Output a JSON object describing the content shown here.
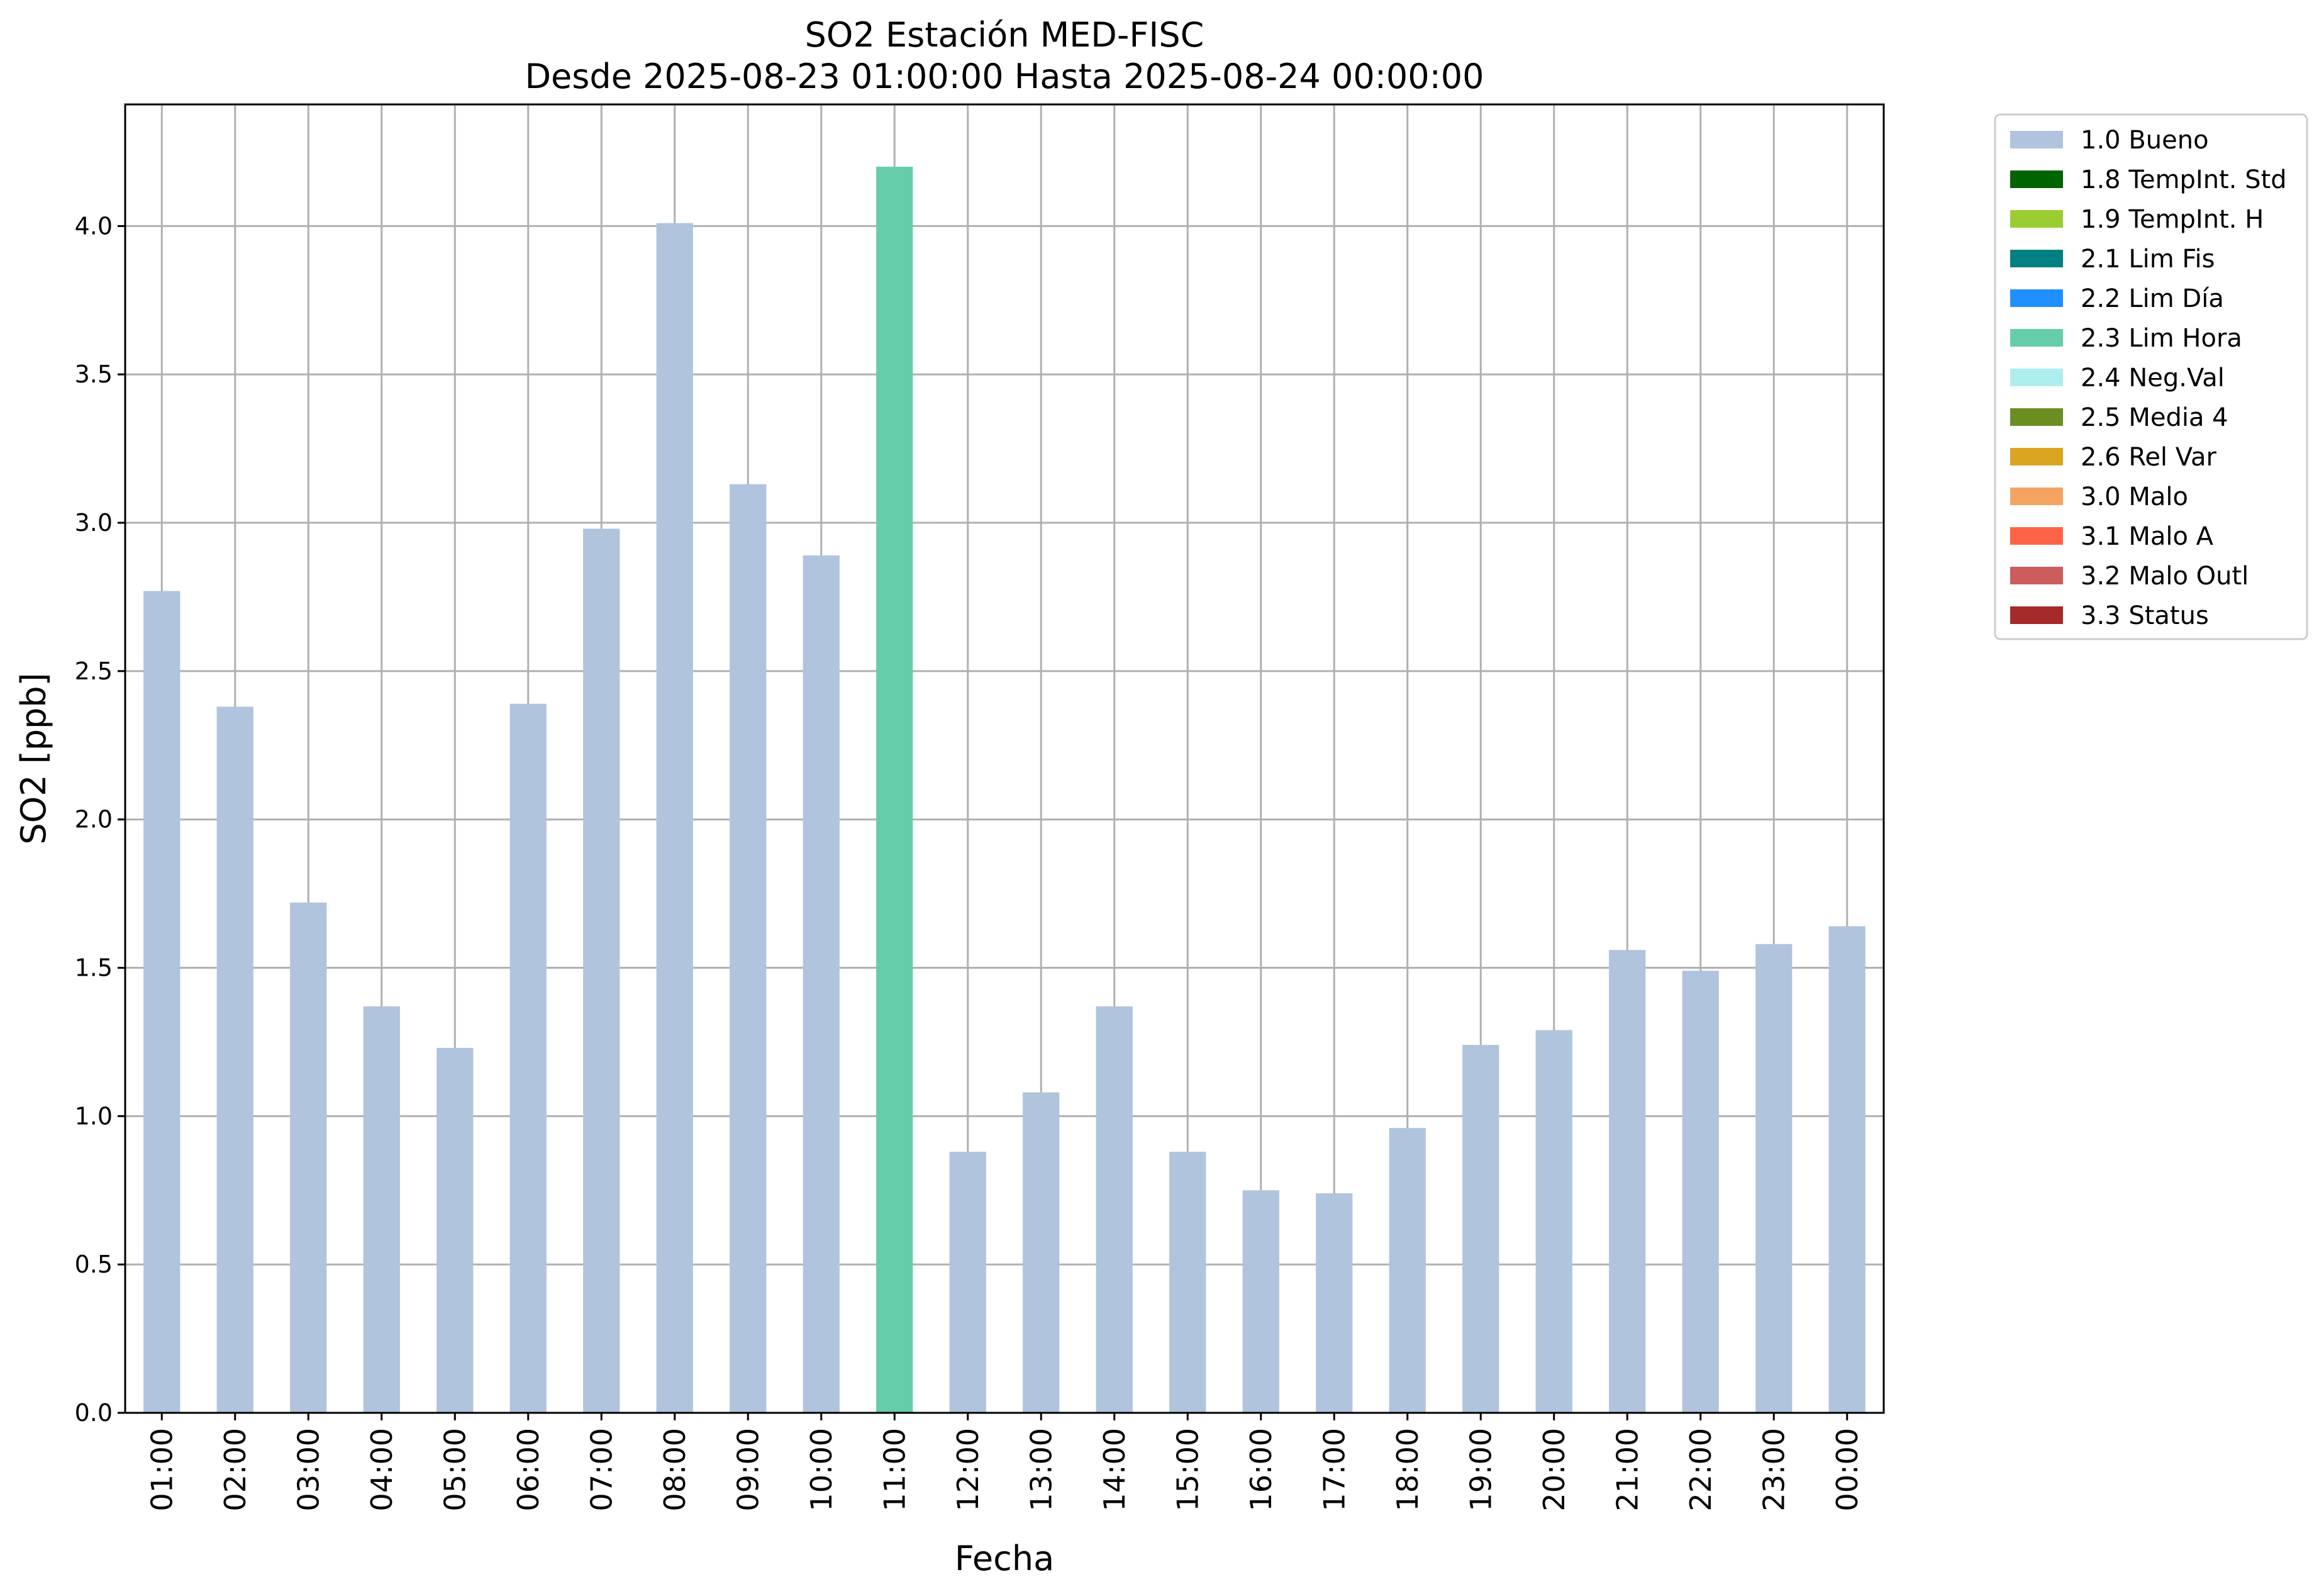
{
  "chart_data": {
    "type": "bar",
    "title": "SO2 Estación MED-FISC",
    "subtitle": "Desde 2025-08-23 01:00:00 Hasta 2025-08-24 00:00:00",
    "xlabel": "Fecha",
    "ylabel": "SO2 [ppb]",
    "ylim": [
      0,
      4.41
    ],
    "yticks": [
      "0.0",
      "0.5",
      "1.0",
      "1.5",
      "2.0",
      "2.5",
      "3.0",
      "3.5",
      "4.0"
    ],
    "grid": true,
    "legend_position": "outside right",
    "categories": [
      "01:00",
      "02:00",
      "03:00",
      "04:00",
      "05:00",
      "06:00",
      "07:00",
      "08:00",
      "09:00",
      "10:00",
      "11:00",
      "12:00",
      "13:00",
      "14:00",
      "15:00",
      "16:00",
      "17:00",
      "18:00",
      "19:00",
      "20:00",
      "21:00",
      "22:00",
      "23:00",
      "00:00"
    ],
    "values": [
      2.77,
      2.38,
      1.72,
      1.37,
      1.23,
      2.39,
      2.98,
      4.01,
      3.13,
      2.89,
      4.2,
      0.88,
      1.08,
      1.37,
      0.88,
      0.75,
      0.74,
      0.96,
      1.24,
      1.29,
      1.56,
      1.49,
      1.58,
      1.64
    ],
    "flags": [
      "1.0 Bueno",
      "1.0 Bueno",
      "1.0 Bueno",
      "1.0 Bueno",
      "1.0 Bueno",
      "1.0 Bueno",
      "1.0 Bueno",
      "1.0 Bueno",
      "1.0 Bueno",
      "1.0 Bueno",
      "2.3 Lim Hora",
      "1.0 Bueno",
      "1.0 Bueno",
      "1.0 Bueno",
      "1.0 Bueno",
      "1.0 Bueno",
      "1.0 Bueno",
      "1.0 Bueno",
      "1.0 Bueno",
      "1.0 Bueno",
      "1.0 Bueno",
      "1.0 Bueno",
      "1.0 Bueno",
      "1.0 Bueno"
    ],
    "legend": [
      {
        "label": "1.0 Bueno",
        "color": "#b0c4de"
      },
      {
        "label": "1.8 TempInt. Std",
        "color": "#006400"
      },
      {
        "label": "1.9 TempInt. H",
        "color": "#9acd32"
      },
      {
        "label": "2.1 Lim Fis",
        "color": "#008080"
      },
      {
        "label": "2.2 Lim Día",
        "color": "#1e90ff"
      },
      {
        "label": "2.3 Lim Hora",
        "color": "#66cdaa"
      },
      {
        "label": "2.4 Neg.Val",
        "color": "#afeeee"
      },
      {
        "label": "2.5 Media 4",
        "color": "#6b8e23"
      },
      {
        "label": "2.6 Rel Var",
        "color": "#daa520"
      },
      {
        "label": "3.0 Malo",
        "color": "#f4a460"
      },
      {
        "label": "3.1 Malo A",
        "color": "#ff6347"
      },
      {
        "label": "3.2 Malo Outl",
        "color": "#cd5c5c"
      },
      {
        "label": "3.3 Status",
        "color": "#a52a2a"
      }
    ]
  }
}
